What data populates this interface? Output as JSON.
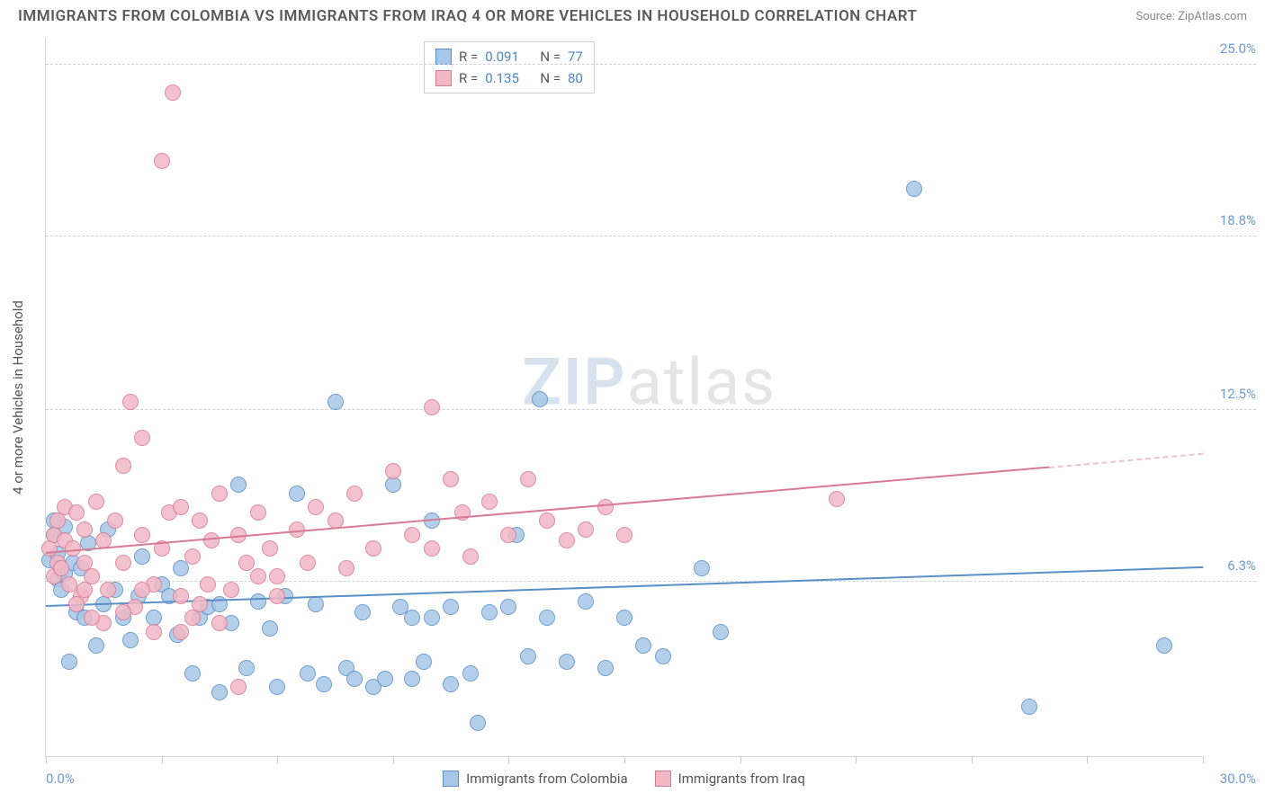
{
  "header": {
    "title": "IMMIGRANTS FROM COLOMBIA VS IMMIGRANTS FROM IRAQ 4 OR MORE VEHICLES IN HOUSEHOLD CORRELATION CHART",
    "source_prefix": "Source: ",
    "source_name": "ZipAtlas.com"
  },
  "chart": {
    "type": "scatter",
    "y_axis_title": "4 or more Vehicles in Household",
    "background_color": "#ffffff",
    "grid_color": "#d0d0d0",
    "axis_color": "#d8d8d8",
    "xlim": [
      0,
      30
    ],
    "ylim": [
      0,
      26
    ],
    "x_ticks": [
      0,
      3,
      6,
      9,
      12,
      15,
      18,
      21,
      24,
      27,
      30
    ],
    "x_label_min": "0.0%",
    "x_label_max": "30.0%",
    "y_ticks": [
      {
        "v": 6.3,
        "label": "6.3%"
      },
      {
        "v": 12.5,
        "label": "12.5%"
      },
      {
        "v": 18.8,
        "label": "18.8%"
      },
      {
        "v": 25.0,
        "label": "25.0%"
      }
    ],
    "marker_radius": 9,
    "marker_stroke": 1.5,
    "marker_fill_opacity": 0.35,
    "watermark": {
      "bold": "ZIP",
      "rest": "atlas"
    }
  },
  "series": [
    {
      "name": "Immigrants from Colombia",
      "stroke": "#5b8fc7",
      "fill": "#a7c7e7",
      "R": "0.091",
      "N": "77",
      "trend": {
        "x1": 0,
        "y1": 5.4,
        "x2": 30,
        "y2": 6.8,
        "dash_from_x": 30
      },
      "points": [
        [
          0.1,
          7.1
        ],
        [
          0.2,
          8.0
        ],
        [
          0.3,
          6.4
        ],
        [
          0.3,
          7.3
        ],
        [
          0.4,
          6.0
        ],
        [
          0.5,
          8.3
        ],
        [
          0.5,
          6.6
        ],
        [
          0.6,
          3.4
        ],
        [
          0.7,
          7.0
        ],
        [
          0.8,
          5.2
        ],
        [
          0.9,
          6.8
        ],
        [
          1.0,
          5.0
        ],
        [
          1.1,
          7.7
        ],
        [
          1.3,
          4.0
        ],
        [
          1.5,
          5.5
        ],
        [
          1.6,
          8.2
        ],
        [
          1.8,
          6.0
        ],
        [
          2.0,
          5.0
        ],
        [
          2.2,
          4.2
        ],
        [
          2.4,
          5.8
        ],
        [
          2.5,
          7.2
        ],
        [
          2.8,
          5.0
        ],
        [
          3.0,
          6.2
        ],
        [
          3.2,
          5.8
        ],
        [
          3.4,
          4.4
        ],
        [
          3.5,
          6.8
        ],
        [
          3.8,
          3.0
        ],
        [
          4.0,
          5.0
        ],
        [
          4.2,
          5.4
        ],
        [
          4.5,
          2.3
        ],
        [
          4.5,
          5.5
        ],
        [
          4.8,
          4.8
        ],
        [
          5.0,
          9.8
        ],
        [
          5.2,
          3.2
        ],
        [
          5.5,
          5.6
        ],
        [
          5.8,
          4.6
        ],
        [
          6.0,
          2.5
        ],
        [
          6.2,
          5.8
        ],
        [
          6.5,
          9.5
        ],
        [
          6.8,
          3.0
        ],
        [
          7.0,
          5.5
        ],
        [
          7.2,
          2.6
        ],
        [
          7.5,
          12.8
        ],
        [
          7.8,
          3.2
        ],
        [
          8.0,
          2.8
        ],
        [
          8.2,
          5.2
        ],
        [
          8.5,
          2.5
        ],
        [
          8.8,
          2.8
        ],
        [
          9.0,
          9.8
        ],
        [
          9.2,
          5.4
        ],
        [
          9.5,
          2.8
        ],
        [
          9.8,
          3.4
        ],
        [
          10.0,
          8.5
        ],
        [
          10.0,
          5.0
        ],
        [
          10.5,
          2.6
        ],
        [
          10.5,
          5.4
        ],
        [
          11.0,
          3.0
        ],
        [
          11.2,
          1.2
        ],
        [
          11.5,
          5.2
        ],
        [
          12.0,
          5.4
        ],
        [
          12.2,
          8.0
        ],
        [
          12.5,
          3.6
        ],
        [
          12.8,
          12.9
        ],
        [
          13.0,
          5.0
        ],
        [
          13.5,
          3.4
        ],
        [
          14.0,
          5.6
        ],
        [
          14.5,
          3.2
        ],
        [
          15.0,
          5.0
        ],
        [
          15.5,
          4.0
        ],
        [
          16.0,
          3.6
        ],
        [
          17.0,
          6.8
        ],
        [
          17.5,
          4.5
        ],
        [
          22.5,
          20.5
        ],
        [
          25.5,
          1.8
        ],
        [
          29.0,
          4.0
        ],
        [
          9.5,
          5.0
        ],
        [
          0.2,
          8.5
        ]
      ]
    },
    {
      "name": "Immigrants from Iraq",
      "stroke": "#d77a94",
      "fill": "#f2b8c6",
      "R": "0.135",
      "N": "80",
      "trend": {
        "x1": 0,
        "y1": 7.3,
        "x2": 26,
        "y2": 10.4,
        "dash_from_x": 26,
        "dash_to_x": 30,
        "dash_to_y": 10.9
      },
      "points": [
        [
          0.1,
          7.5
        ],
        [
          0.2,
          6.5
        ],
        [
          0.2,
          8.0
        ],
        [
          0.3,
          7.0
        ],
        [
          0.3,
          8.5
        ],
        [
          0.4,
          6.8
        ],
        [
          0.5,
          7.8
        ],
        [
          0.5,
          9.0
        ],
        [
          0.6,
          6.2
        ],
        [
          0.7,
          7.5
        ],
        [
          0.8,
          8.8
        ],
        [
          0.9,
          5.8
        ],
        [
          1.0,
          7.0
        ],
        [
          1.0,
          8.2
        ],
        [
          1.2,
          6.5
        ],
        [
          1.3,
          9.2
        ],
        [
          1.5,
          7.8
        ],
        [
          1.6,
          6.0
        ],
        [
          1.8,
          8.5
        ],
        [
          2.0,
          10.5
        ],
        [
          2.0,
          7.0
        ],
        [
          2.2,
          12.8
        ],
        [
          2.3,
          5.4
        ],
        [
          2.5,
          11.5
        ],
        [
          2.5,
          8.0
        ],
        [
          2.8,
          6.2
        ],
        [
          3.0,
          21.5
        ],
        [
          3.0,
          7.5
        ],
        [
          3.2,
          8.8
        ],
        [
          3.3,
          24.0
        ],
        [
          3.5,
          5.8
        ],
        [
          3.5,
          9.0
        ],
        [
          3.8,
          7.2
        ],
        [
          4.0,
          8.5
        ],
        [
          4.0,
          5.5
        ],
        [
          4.3,
          7.8
        ],
        [
          4.5,
          9.5
        ],
        [
          4.8,
          6.0
        ],
        [
          5.0,
          8.0
        ],
        [
          5.0,
          2.5
        ],
        [
          5.2,
          7.0
        ],
        [
          5.5,
          8.8
        ],
        [
          5.8,
          7.5
        ],
        [
          6.0,
          6.5
        ],
        [
          6.5,
          8.2
        ],
        [
          6.8,
          7.0
        ],
        [
          7.0,
          9.0
        ],
        [
          7.5,
          8.5
        ],
        [
          7.8,
          6.8
        ],
        [
          8.0,
          9.5
        ],
        [
          8.5,
          7.5
        ],
        [
          9.0,
          10.3
        ],
        [
          9.5,
          8.0
        ],
        [
          10.0,
          12.6
        ],
        [
          10.0,
          7.5
        ],
        [
          10.5,
          10.0
        ],
        [
          10.8,
          8.8
        ],
        [
          11.0,
          7.2
        ],
        [
          11.5,
          9.2
        ],
        [
          12.0,
          8.0
        ],
        [
          12.5,
          10.0
        ],
        [
          13.0,
          8.5
        ],
        [
          13.5,
          7.8
        ],
        [
          14.0,
          8.2
        ],
        [
          14.5,
          9.0
        ],
        [
          15.0,
          8.0
        ],
        [
          20.5,
          9.3
        ],
        [
          3.8,
          5.0
        ],
        [
          4.5,
          4.8
        ],
        [
          2.0,
          5.2
        ],
        [
          1.5,
          4.8
        ],
        [
          2.8,
          4.5
        ],
        [
          3.5,
          4.5
        ],
        [
          0.8,
          5.5
        ],
        [
          1.2,
          5.0
        ],
        [
          2.5,
          6.0
        ],
        [
          4.2,
          6.2
        ],
        [
          5.5,
          6.5
        ],
        [
          6.0,
          5.8
        ],
        [
          1.0,
          6.0
        ]
      ]
    }
  ],
  "legend": {
    "r_label": "R =",
    "n_label": "N ="
  }
}
